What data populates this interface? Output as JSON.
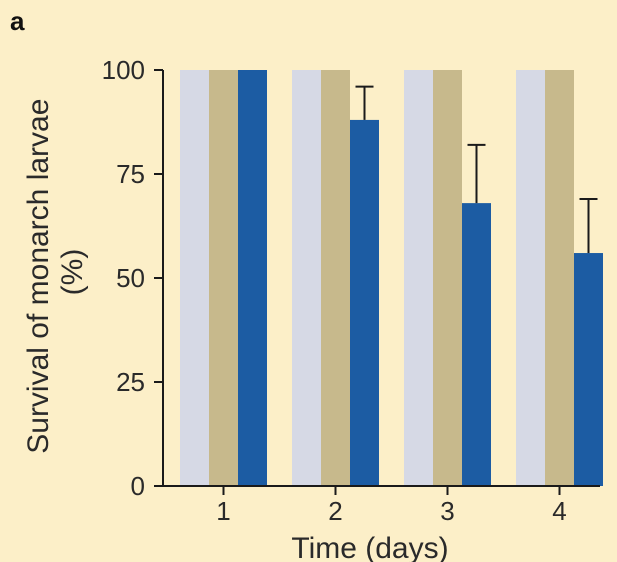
{
  "panel_label": "a",
  "colors": {
    "background": "#fcefc8",
    "series": [
      "#d6d9e5",
      "#c7b98c",
      "#1c5ca3"
    ],
    "axis": "#1a1a1a"
  },
  "chart_data": {
    "type": "bar",
    "title": "",
    "xlabel": "Time (days)",
    "ylabel_lines": [
      "Survival of monarch larvae",
      "(%)"
    ],
    "categories": [
      "1",
      "2",
      "3",
      "4"
    ],
    "ylim": [
      0,
      100
    ],
    "yticks": [
      0,
      25,
      50,
      75,
      100
    ],
    "grid": false,
    "legend": "none",
    "series": [
      {
        "values": [
          100,
          100,
          100,
          100
        ],
        "color": "#d6d9e5"
      },
      {
        "values": [
          100,
          100,
          100,
          100
        ],
        "color": "#c7b98c"
      },
      {
        "values": [
          100,
          88,
          68,
          56
        ],
        "error_upper": [
          0,
          8,
          14,
          13
        ],
        "color": "#1c5ca3"
      }
    ]
  }
}
